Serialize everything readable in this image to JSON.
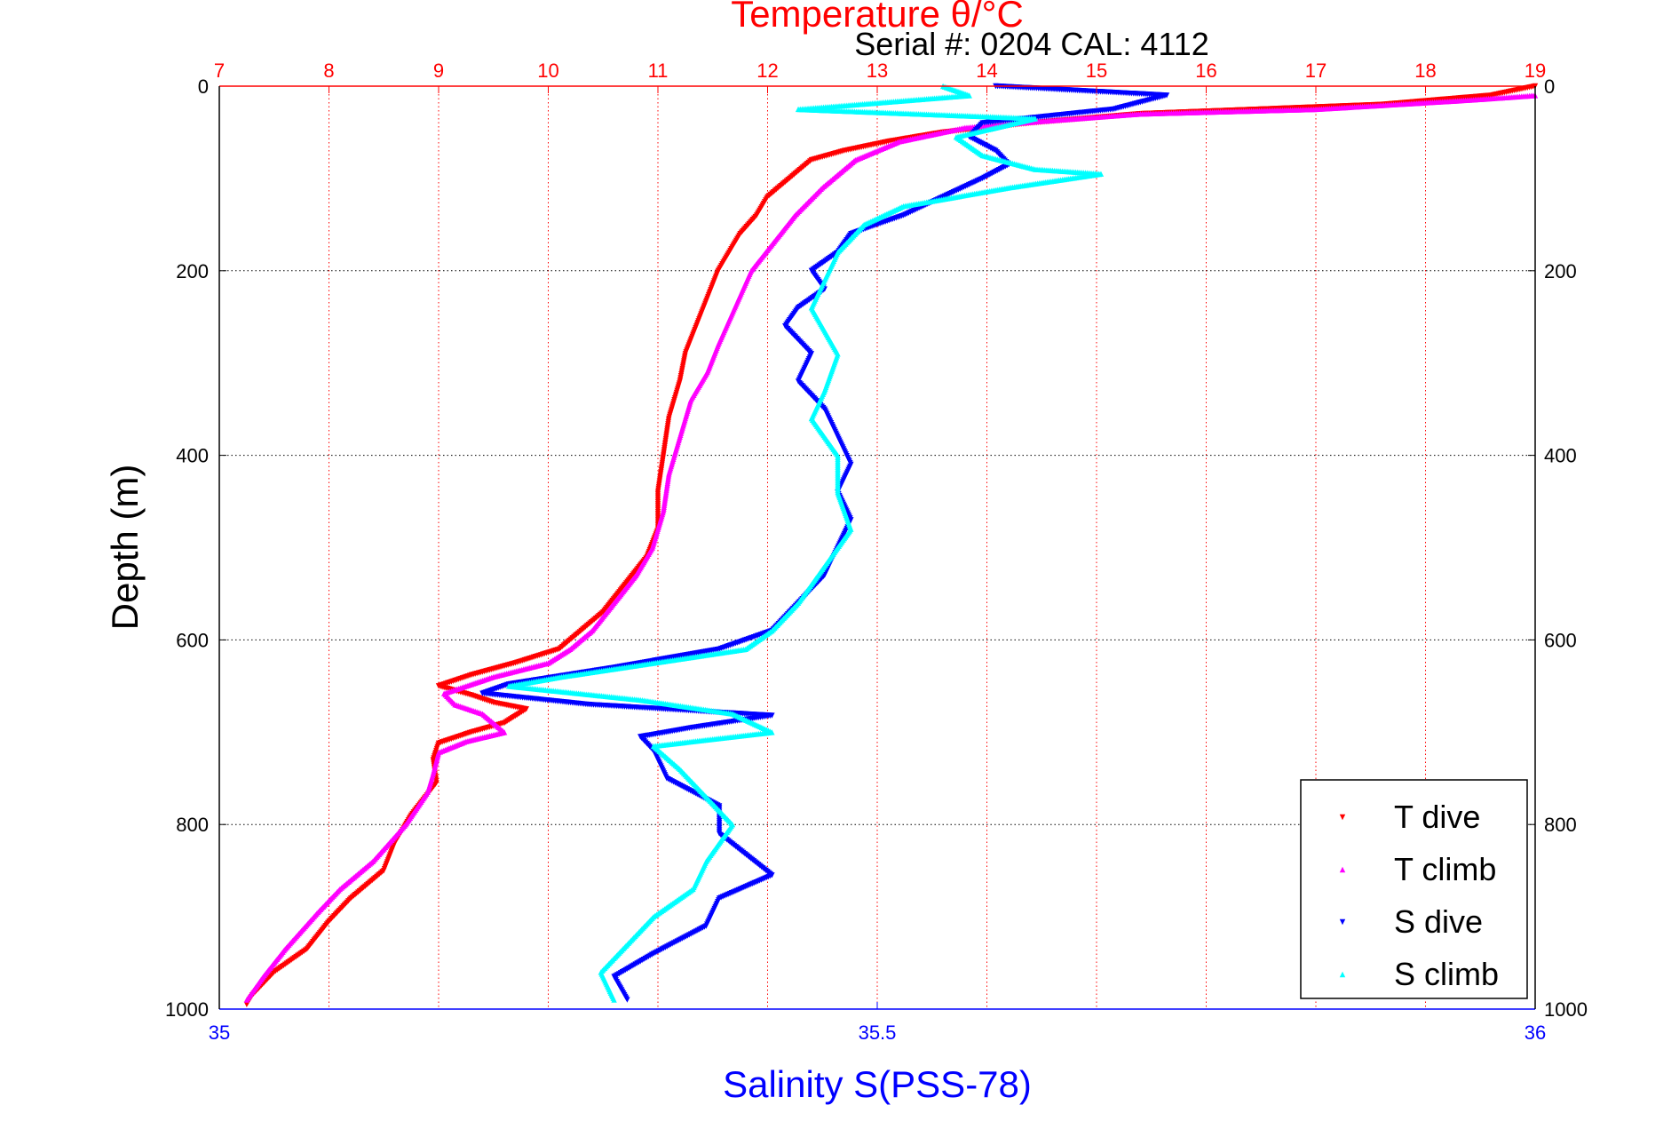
{
  "chart_data": {
    "type": "scatter",
    "title": "Temperature θ/°C",
    "serial_label": "Serial #: 0204  CAL: 4112",
    "ylabel": "Depth (m)",
    "xlabel": "Salinity S(PSS-78)",
    "temperature_axis": {
      "position": "top",
      "range": [
        7,
        19
      ],
      "ticks": [
        7,
        8,
        9,
        10,
        11,
        12,
        13,
        14,
        15,
        16,
        17,
        18,
        19
      ],
      "color": "#ff0000"
    },
    "salinity_axis": {
      "position": "bottom",
      "range": [
        35,
        36
      ],
      "ticks": [
        35,
        35.5,
        36
      ],
      "tick_labels": [
        "35",
        "35.5",
        "36"
      ],
      "color": "#0000ff"
    },
    "depth_axis": {
      "range": [
        0,
        1000
      ],
      "reversed": true,
      "ticks": [
        0,
        200,
        400,
        600,
        800,
        1000
      ]
    },
    "grid": true,
    "legend": {
      "placement": "bottom-right",
      "entries": [
        "T dive",
        "T climb",
        "S dive",
        "S climb"
      ]
    },
    "series": [
      {
        "name": "T dive",
        "axis": "temperature",
        "color": "#ff0000",
        "marker": "triangle-down",
        "points": [
          [
            19.0,
            0
          ],
          [
            18.6,
            10
          ],
          [
            17.6,
            20
          ],
          [
            15.4,
            30
          ],
          [
            14.4,
            40
          ],
          [
            13.6,
            50
          ],
          [
            13.1,
            60
          ],
          [
            12.7,
            70
          ],
          [
            12.4,
            80
          ],
          [
            12.2,
            100
          ],
          [
            12.0,
            120
          ],
          [
            11.9,
            140
          ],
          [
            11.75,
            160
          ],
          [
            11.65,
            180
          ],
          [
            11.55,
            200
          ],
          [
            11.45,
            230
          ],
          [
            11.35,
            260
          ],
          [
            11.25,
            290
          ],
          [
            11.2,
            320
          ],
          [
            11.1,
            360
          ],
          [
            11.05,
            400
          ],
          [
            11.0,
            440
          ],
          [
            11.0,
            480
          ],
          [
            10.9,
            510
          ],
          [
            10.7,
            540
          ],
          [
            10.5,
            570
          ],
          [
            10.3,
            590
          ],
          [
            10.1,
            610
          ],
          [
            9.7,
            625
          ],
          [
            9.3,
            638
          ],
          [
            9.0,
            650
          ],
          [
            9.3,
            660
          ],
          [
            9.5,
            668
          ],
          [
            9.8,
            675
          ],
          [
            9.6,
            690
          ],
          [
            9.3,
            700
          ],
          [
            9.0,
            712
          ],
          [
            8.95,
            730
          ],
          [
            8.98,
            755
          ],
          [
            8.75,
            790
          ],
          [
            8.6,
            820
          ],
          [
            8.5,
            850
          ],
          [
            8.2,
            880
          ],
          [
            8.0,
            905
          ],
          [
            7.8,
            935
          ],
          [
            7.5,
            960
          ],
          [
            7.3,
            985
          ],
          [
            7.25,
            995
          ]
        ]
      },
      {
        "name": "T climb",
        "axis": "temperature",
        "color": "#ff00ff",
        "marker": "triangle-up",
        "points": [
          [
            19.0,
            10
          ],
          [
            18.4,
            15
          ],
          [
            17.0,
            25
          ],
          [
            15.4,
            30
          ],
          [
            14.5,
            38
          ],
          [
            13.8,
            45
          ],
          [
            13.2,
            60
          ],
          [
            12.8,
            80
          ],
          [
            12.5,
            110
          ],
          [
            12.25,
            140
          ],
          [
            12.05,
            170
          ],
          [
            11.85,
            200
          ],
          [
            11.7,
            240
          ],
          [
            11.55,
            280
          ],
          [
            11.45,
            310
          ],
          [
            11.3,
            340
          ],
          [
            11.2,
            380
          ],
          [
            11.1,
            420
          ],
          [
            11.05,
            460
          ],
          [
            10.95,
            500
          ],
          [
            10.8,
            530
          ],
          [
            10.6,
            560
          ],
          [
            10.4,
            590
          ],
          [
            10.2,
            610
          ],
          [
            10.0,
            625
          ],
          [
            9.5,
            640
          ],
          [
            9.05,
            658
          ],
          [
            9.15,
            670
          ],
          [
            9.4,
            680
          ],
          [
            9.6,
            700
          ],
          [
            9.25,
            710
          ],
          [
            9.0,
            722
          ],
          [
            8.95,
            745
          ],
          [
            8.9,
            765
          ],
          [
            8.7,
            800
          ],
          [
            8.4,
            840
          ],
          [
            8.1,
            870
          ],
          [
            7.9,
            895
          ],
          [
            7.6,
            935
          ],
          [
            7.4,
            965
          ],
          [
            7.25,
            990
          ]
        ]
      },
      {
        "name": "S dive",
        "axis": "salinity",
        "color": "#0000ff",
        "marker": "triangle-down",
        "points": [
          [
            35.59,
            0
          ],
          [
            35.72,
            10
          ],
          [
            35.68,
            25
          ],
          [
            35.58,
            40
          ],
          [
            35.57,
            55
          ],
          [
            35.59,
            70
          ],
          [
            35.6,
            85
          ],
          [
            35.58,
            100
          ],
          [
            35.55,
            120
          ],
          [
            35.52,
            140
          ],
          [
            35.48,
            160
          ],
          [
            35.47,
            180
          ],
          [
            35.45,
            200
          ],
          [
            35.46,
            220
          ],
          [
            35.44,
            240
          ],
          [
            35.43,
            260
          ],
          [
            35.45,
            290
          ],
          [
            35.44,
            320
          ],
          [
            35.46,
            350
          ],
          [
            35.47,
            380
          ],
          [
            35.48,
            410
          ],
          [
            35.47,
            440
          ],
          [
            35.48,
            470
          ],
          [
            35.47,
            500
          ],
          [
            35.46,
            530
          ],
          [
            35.44,
            560
          ],
          [
            35.42,
            590
          ],
          [
            35.38,
            610
          ],
          [
            35.3,
            630
          ],
          [
            35.22,
            648
          ],
          [
            35.2,
            658
          ],
          [
            35.28,
            670
          ],
          [
            35.42,
            682
          ],
          [
            35.36,
            695
          ],
          [
            35.32,
            705
          ],
          [
            35.33,
            720
          ],
          [
            35.34,
            750
          ],
          [
            35.38,
            780
          ],
          [
            35.38,
            810
          ],
          [
            35.42,
            855
          ],
          [
            35.38,
            880
          ],
          [
            35.37,
            910
          ],
          [
            35.33,
            940
          ],
          [
            35.3,
            965
          ],
          [
            35.31,
            990
          ]
        ]
      },
      {
        "name": "S climb",
        "axis": "salinity",
        "color": "#00ffff",
        "marker": "triangle-up",
        "points": [
          [
            35.55,
            0
          ],
          [
            35.57,
            10
          ],
          [
            35.44,
            25
          ],
          [
            35.62,
            35
          ],
          [
            35.56,
            55
          ],
          [
            35.58,
            75
          ],
          [
            35.62,
            90
          ],
          [
            35.67,
            95
          ],
          [
            35.6,
            110
          ],
          [
            35.52,
            130
          ],
          [
            35.49,
            150
          ],
          [
            35.47,
            180
          ],
          [
            35.46,
            210
          ],
          [
            35.45,
            240
          ],
          [
            35.47,
            290
          ],
          [
            35.46,
            330
          ],
          [
            35.45,
            360
          ],
          [
            35.47,
            400
          ],
          [
            35.47,
            440
          ],
          [
            35.48,
            480
          ],
          [
            35.46,
            520
          ],
          [
            35.44,
            560
          ],
          [
            35.42,
            590
          ],
          [
            35.4,
            610
          ],
          [
            35.33,
            625
          ],
          [
            35.26,
            640
          ],
          [
            35.22,
            650
          ],
          [
            35.32,
            665
          ],
          [
            35.39,
            680
          ],
          [
            35.42,
            700
          ],
          [
            35.33,
            715
          ],
          [
            35.35,
            740
          ],
          [
            35.37,
            770
          ],
          [
            35.39,
            800
          ],
          [
            35.37,
            840
          ],
          [
            35.36,
            870
          ],
          [
            35.33,
            900
          ],
          [
            35.31,
            930
          ],
          [
            35.29,
            960
          ],
          [
            35.3,
            990
          ]
        ]
      }
    ]
  }
}
